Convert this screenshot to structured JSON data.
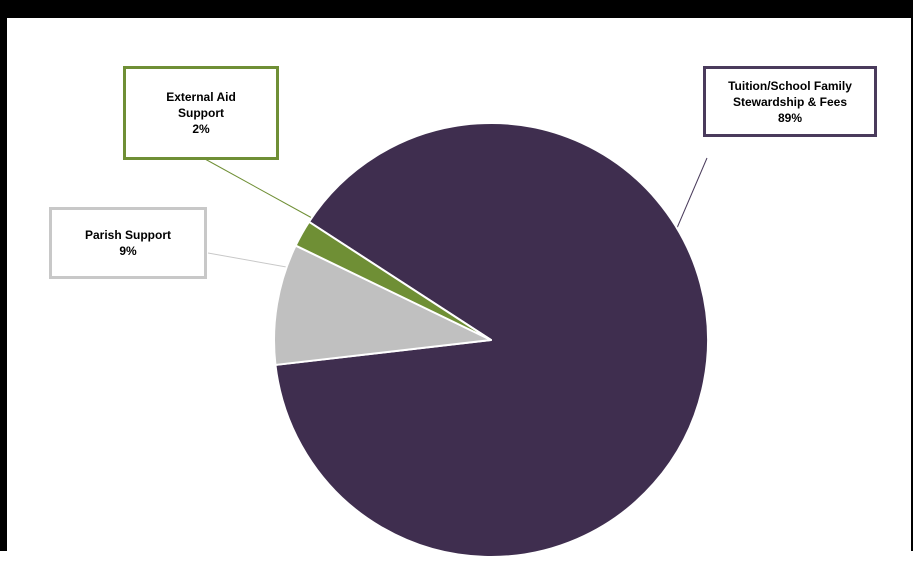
{
  "chart_data": {
    "type": "pie",
    "title": "",
    "start_angle_deg": 213,
    "slices": [
      {
        "key": "tuition",
        "label_lines": [
          "Tuition/School Family",
          "Stewardship & Fees"
        ],
        "pct_label": "89%",
        "value": 89,
        "color": "#3f2e4f",
        "border_color": "#4a3b5c"
      },
      {
        "key": "parish",
        "label_lines": [
          "Parish Support"
        ],
        "pct_label": "9%",
        "value": 9,
        "color": "#c0c0c0",
        "border_color": "#c8c8c8"
      },
      {
        "key": "external",
        "label_lines": [
          "External Aid",
          "Support"
        ],
        "pct_label": "2%",
        "value": 2,
        "color": "#6f8f35",
        "border_color": "#6f8f35"
      }
    ],
    "legend": "callouts"
  }
}
